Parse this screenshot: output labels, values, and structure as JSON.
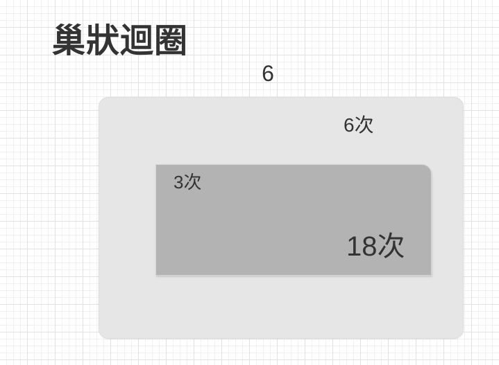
{
  "title": "巢狀迴圈",
  "outer_count": "6",
  "outer_loop": {
    "label": "6次"
  },
  "inner_loop": {
    "label": "3次",
    "total_label": "18次"
  }
}
